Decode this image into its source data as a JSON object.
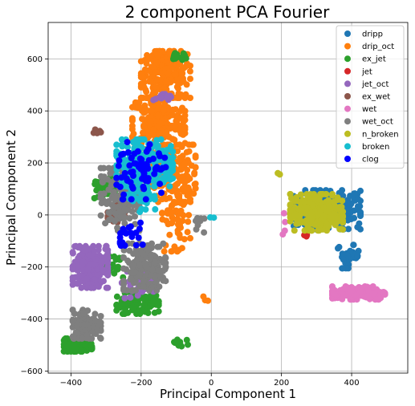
{
  "chart_data": {
    "type": "scatter",
    "title": "2 component PCA Fourier",
    "xlabel": "Principal Component 1",
    "ylabel": "Principal Component 2",
    "xlim": [
      -465,
      560
    ],
    "ylim": [
      -608,
      740
    ],
    "xticks": [
      -400,
      -200,
      0,
      200,
      400
    ],
    "yticks": [
      -600,
      -400,
      -200,
      0,
      200,
      400,
      600
    ],
    "grid": true,
    "legend_position": "top-right",
    "series": [
      {
        "name": "dripp",
        "color": "#1f77b4",
        "clusters": [
          {
            "cx": 330,
            "cy": 20,
            "rx": 95,
            "ry": 75,
            "n": 260
          },
          {
            "cx": 390,
            "cy": -160,
            "rx": 30,
            "ry": 45,
            "n": 30
          }
        ]
      },
      {
        "name": "drip_oct",
        "color": "#ff7f0e",
        "clusters": [
          {
            "cx": -130,
            "cy": 540,
            "rx": 70,
            "ry": 90,
            "n": 240
          },
          {
            "cx": -150,
            "cy": 360,
            "rx": 75,
            "ry": 90,
            "n": 200
          },
          {
            "cx": -130,
            "cy": 160,
            "rx": 85,
            "ry": 110,
            "n": 200
          },
          {
            "cx": -100,
            "cy": -20,
            "rx": 40,
            "ry": 120,
            "n": 60
          },
          {
            "cx": -20,
            "cy": -320,
            "rx": 20,
            "ry": 20,
            "n": 3
          }
        ]
      },
      {
        "name": "ex_jet",
        "color": "#2ca02c",
        "clusters": [
          {
            "cx": -380,
            "cy": -500,
            "rx": 40,
            "ry": 25,
            "n": 120
          },
          {
            "cx": -210,
            "cy": -340,
            "rx": 60,
            "ry": 40,
            "n": 90
          },
          {
            "cx": -310,
            "cy": 100,
            "rx": 35,
            "ry": 45,
            "n": 30
          },
          {
            "cx": -95,
            "cy": 610,
            "rx": 25,
            "ry": 20,
            "n": 15
          },
          {
            "cx": -90,
            "cy": -490,
            "rx": 25,
            "ry": 15,
            "n": 10
          },
          {
            "cx": -270,
            "cy": -200,
            "rx": 30,
            "ry": 40,
            "n": 20
          }
        ]
      },
      {
        "name": "jet",
        "color": "#d62728",
        "clusters": [
          {
            "cx": 275,
            "cy": -80,
            "rx": 10,
            "ry": 8,
            "n": 3
          }
        ]
      },
      {
        "name": "jet_oct",
        "color": "#9467bd",
        "clusters": [
          {
            "cx": -345,
            "cy": -200,
            "rx": 50,
            "ry": 80,
            "n": 200
          },
          {
            "cx": -210,
            "cy": -260,
            "rx": 45,
            "ry": 60,
            "n": 50
          },
          {
            "cx": -140,
            "cy": 450,
            "rx": 25,
            "ry": 15,
            "n": 15
          }
        ]
      },
      {
        "name": "ex_wet",
        "color": "#8c564b",
        "clusters": [
          {
            "cx": -330,
            "cy": 320,
            "rx": 15,
            "ry": 10,
            "n": 6
          },
          {
            "cx": -270,
            "cy": 0,
            "rx": 25,
            "ry": 40,
            "n": 20
          }
        ]
      },
      {
        "name": "wet",
        "color": "#e377c2",
        "clusters": [
          {
            "cx": 420,
            "cy": -300,
            "rx": 75,
            "ry": 25,
            "n": 170
          },
          {
            "cx": 210,
            "cy": -40,
            "rx": 10,
            "ry": 50,
            "n": 4
          }
        ]
      },
      {
        "name": "wet_oct",
        "color": "#7f7f7f",
        "clusters": [
          {
            "cx": -355,
            "cy": -420,
            "rx": 40,
            "ry": 55,
            "n": 140
          },
          {
            "cx": -190,
            "cy": -200,
            "rx": 60,
            "ry": 90,
            "n": 160
          },
          {
            "cx": -260,
            "cy": 60,
            "rx": 55,
            "ry": 120,
            "n": 140
          },
          {
            "cx": -40,
            "cy": -30,
            "rx": 20,
            "ry": 40,
            "n": 10
          }
        ]
      },
      {
        "name": "n_broken",
        "color": "#bcbd22",
        "clusters": [
          {
            "cx": 300,
            "cy": 10,
            "rx": 75,
            "ry": 70,
            "n": 260
          },
          {
            "cx": 195,
            "cy": 160,
            "rx": 10,
            "ry": 10,
            "n": 3
          }
        ]
      },
      {
        "name": "broken",
        "color": "#17becf",
        "clusters": [
          {
            "cx": -190,
            "cy": 200,
            "rx": 80,
            "ry": 90,
            "n": 230
          },
          {
            "cx": -200,
            "cy": 60,
            "rx": 40,
            "ry": 50,
            "n": 30
          },
          {
            "cx": 0,
            "cy": -10,
            "rx": 8,
            "ry": 8,
            "n": 2
          }
        ]
      },
      {
        "name": "clog",
        "color": "#0000ff",
        "clusters": [
          {
            "cx": -200,
            "cy": 170,
            "rx": 70,
            "ry": 110,
            "n": 70
          },
          {
            "cx": -220,
            "cy": -80,
            "rx": 40,
            "ry": 50,
            "n": 20
          }
        ]
      }
    ]
  }
}
